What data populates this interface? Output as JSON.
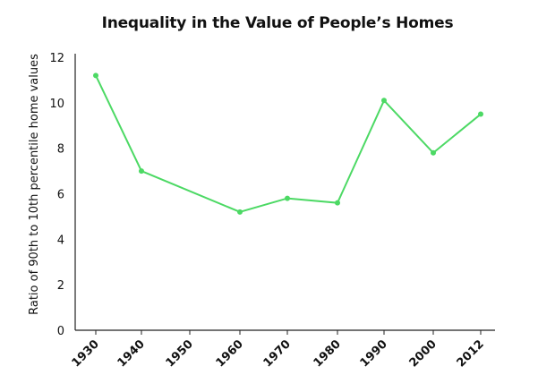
{
  "chart_data": {
    "type": "line",
    "title": "Inequality in the Value of People’s Homes",
    "xlabel": "",
    "ylabel": "Ratio of 90th to 10th percentile home values",
    "categories": [
      "1930",
      "1940",
      "1950",
      "1960",
      "1970",
      "1980",
      "1990",
      "2000",
      "2012"
    ],
    "ylim": [
      0,
      12
    ],
    "yticks": [
      "0",
      "2",
      "4",
      "6",
      "8",
      "10",
      "12"
    ],
    "series": [
      {
        "x": [
          1930,
          1940,
          1960,
          1970,
          1980,
          1990,
          2000,
          2012
        ],
        "values": [
          11.2,
          7.0,
          5.2,
          5.8,
          5.6,
          10.1,
          7.8,
          9.5
        ],
        "color": "#4cd964"
      }
    ],
    "grid": false,
    "legend": "none"
  }
}
